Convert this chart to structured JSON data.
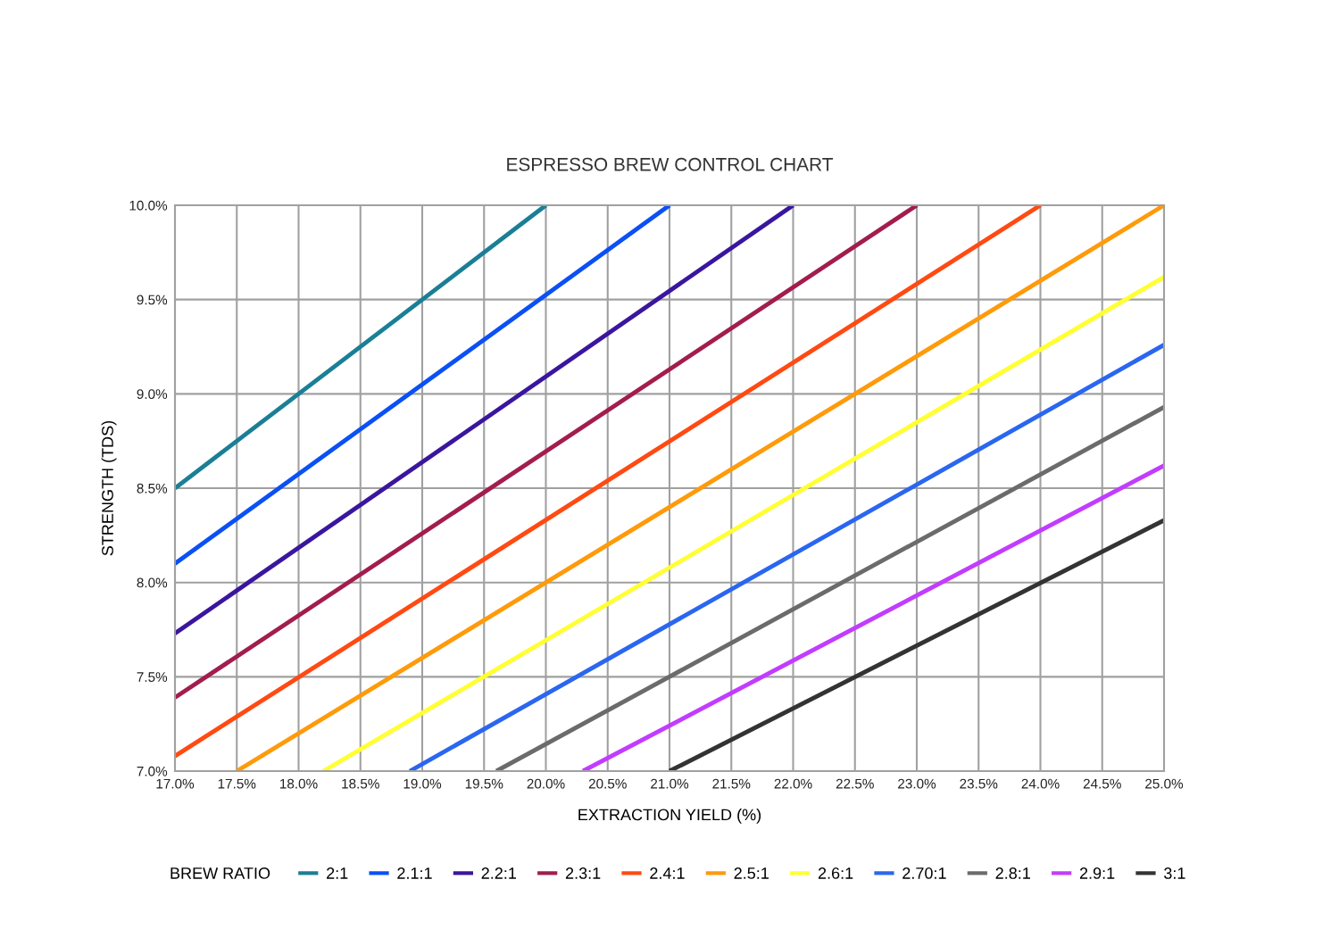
{
  "chart_data": {
    "type": "line",
    "title": "ESPRESSO BREW CONTROL CHART",
    "xlabel": "EXTRACTION YIELD (%)",
    "ylabel": "STRENGTH (TDS)",
    "legend_title": "BREW RATIO",
    "xlim": [
      17,
      25
    ],
    "ylim": [
      7,
      10
    ],
    "xticks": [
      {
        "value": 17,
        "label": "17.0%"
      },
      {
        "value": 17.5,
        "label": "17.5%"
      },
      {
        "value": 18,
        "label": "18.0%"
      },
      {
        "value": 18.5,
        "label": "18.5%"
      },
      {
        "value": 19,
        "label": "19.0%"
      },
      {
        "value": 19.5,
        "label": "19.5%"
      },
      {
        "value": 20,
        "label": "20.0%"
      },
      {
        "value": 20.5,
        "label": "20.5%"
      },
      {
        "value": 21,
        "label": "21.0%"
      },
      {
        "value": 21.5,
        "label": "21.5%"
      },
      {
        "value": 22,
        "label": "22.0%"
      },
      {
        "value": 22.5,
        "label": "22.5%"
      },
      {
        "value": 23,
        "label": "23.0%"
      },
      {
        "value": 23.5,
        "label": "23.5%"
      },
      {
        "value": 24,
        "label": "24.0%"
      },
      {
        "value": 24.5,
        "label": "24.5%"
      },
      {
        "value": 25,
        "label": "25.0%"
      }
    ],
    "yticks": [
      {
        "value": 7,
        "label": "7.0%"
      },
      {
        "value": 7.5,
        "label": "7.5%"
      },
      {
        "value": 8,
        "label": "8.0%"
      },
      {
        "value": 8.5,
        "label": "8.5%"
      },
      {
        "value": 9,
        "label": "9.0%"
      },
      {
        "value": 9.5,
        "label": "9.5%"
      },
      {
        "value": 10,
        "label": "10.0%"
      }
    ],
    "grid": true,
    "legend": "bottom",
    "marker": "none",
    "line_style": "solid",
    "series": [
      {
        "name": "2:1",
        "color": "#1a7f96",
        "x": [
          17,
          20
        ],
        "values": [
          8.5,
          10
        ]
      },
      {
        "name": "2.1:1",
        "color": "#0a50f5",
        "x": [
          17,
          21
        ],
        "values": [
          8.1,
          10
        ]
      },
      {
        "name": "2.2:1",
        "color": "#3a169e",
        "x": [
          17,
          22
        ],
        "values": [
          7.73,
          10
        ]
      },
      {
        "name": "2.3:1",
        "color": "#a21d4e",
        "x": [
          17,
          23
        ],
        "values": [
          7.39,
          10
        ]
      },
      {
        "name": "2.4:1",
        "color": "#ff4a12",
        "x": [
          17,
          24
        ],
        "values": [
          7.08,
          10
        ]
      },
      {
        "name": "2.5:1",
        "color": "#ff9a0a",
        "x": [
          17.5,
          25
        ],
        "values": [
          7,
          10
        ]
      },
      {
        "name": "2.6:1",
        "color": "#ffff33",
        "x": [
          18.2,
          25
        ],
        "values": [
          7,
          9.62
        ]
      },
      {
        "name": "2.70:1",
        "color": "#2a66f0",
        "x": [
          18.9,
          25
        ],
        "values": [
          7,
          9.26
        ]
      },
      {
        "name": "2.8:1",
        "color": "#6b6b6b",
        "x": [
          19.6,
          25
        ],
        "values": [
          7,
          8.93
        ]
      },
      {
        "name": "2.9:1",
        "color": "#c23cff",
        "x": [
          20.3,
          25
        ],
        "values": [
          7,
          8.62
        ]
      },
      {
        "name": "3:1",
        "color": "#333333",
        "x": [
          21,
          25
        ],
        "values": [
          7,
          8.33
        ]
      }
    ]
  }
}
